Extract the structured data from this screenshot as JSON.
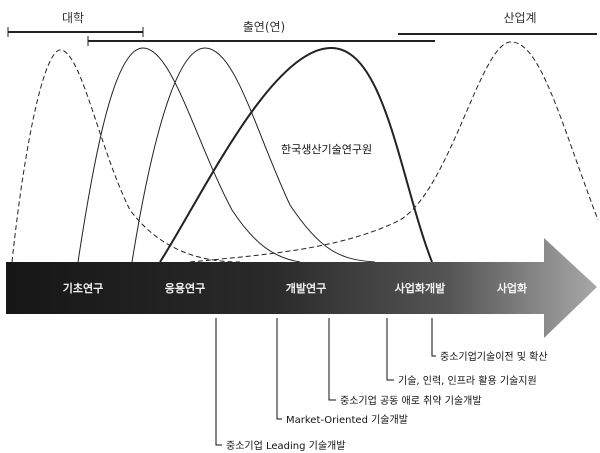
{
  "sectors": {
    "university": "대학",
    "research_institute": "출연(연)",
    "industry": "산업계"
  },
  "center_label": "한국생산기술연구원",
  "stages": [
    "기초연구",
    "응용연구",
    "개발연구",
    "사업화개발",
    "사업화"
  ],
  "annotations": [
    "중소기업기술이전 및 확산",
    "기술, 인력, 인프라 활용 기술지원",
    "중소기업 공동 애로 취약 기술개발",
    "Market-Oriented 기술개발",
    "중소기업 Leading 기술개발"
  ],
  "colors": {
    "arrow_dark": "#1c1c1c",
    "arrow_light": "#9a9a9a",
    "curve": "#222222"
  }
}
